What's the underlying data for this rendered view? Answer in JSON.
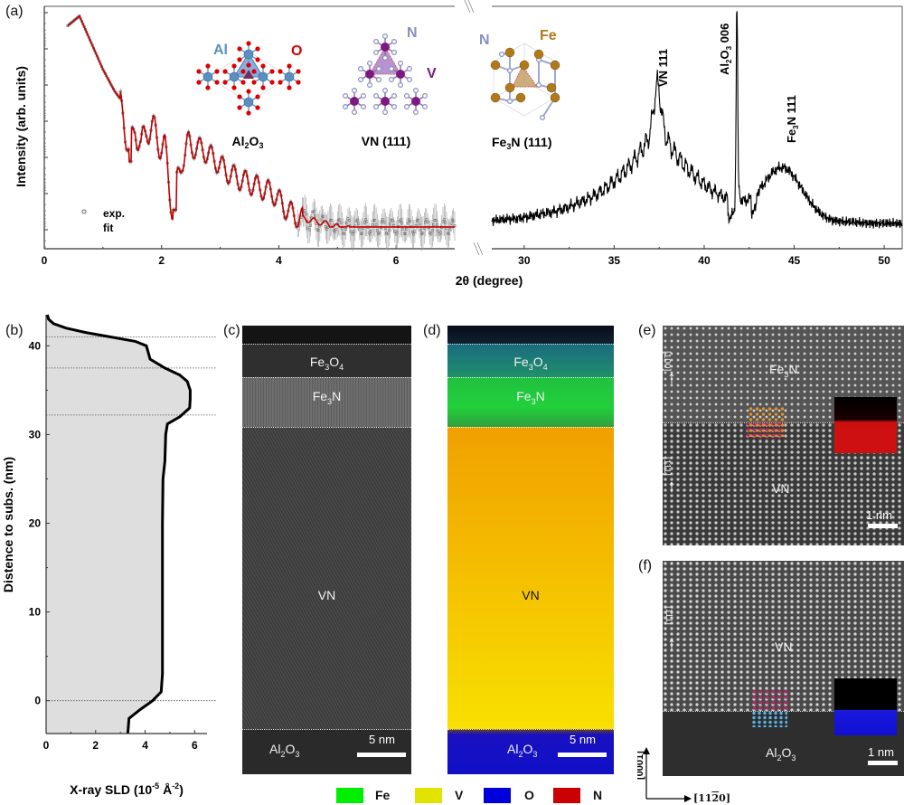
{
  "panels": {
    "a": {
      "label": "(a)"
    },
    "b": {
      "label": "(b)"
    },
    "c": {
      "label": "(c)"
    },
    "d": {
      "label": "(d)"
    },
    "e": {
      "label": "(e)"
    },
    "f": {
      "label": "(f)"
    }
  },
  "chart_data": [
    {
      "id": "xrr",
      "type": "scatter",
      "title": "",
      "xlabel": "2θ (degree)",
      "ylabel": "Intensity (arb. units)",
      "xlim": [
        0,
        7
      ],
      "xticks": [
        "0",
        "2",
        "4",
        "6"
      ],
      "yscale": "log",
      "legend": {
        "placement": "bottom-left",
        "entries": [
          "exp.",
          "fit"
        ]
      },
      "series": [
        {
          "name": "exp.",
          "marker": "open-circle",
          "color": "#555555",
          "x": [
            0.4,
            0.6,
            0.8,
            1.0,
            1.2,
            1.35,
            1.45,
            1.55,
            1.65,
            1.75,
            1.9,
            2.05,
            2.2,
            2.35,
            2.5,
            2.7,
            2.9,
            3.1,
            3.3,
            3.5,
            3.7,
            3.9,
            4.1,
            4.3,
            4.5,
            4.7,
            5.0,
            5.5,
            6.0,
            6.5,
            7.0
          ],
          "y": [
            0.92,
            0.96,
            0.85,
            0.74,
            0.65,
            0.6,
            0.42,
            0.55,
            0.44,
            0.54,
            0.5,
            0.45,
            0.22,
            0.42,
            0.45,
            0.44,
            0.4,
            0.35,
            0.32,
            0.3,
            0.28,
            0.26,
            0.2,
            0.16,
            0.15,
            0.14,
            0.12,
            0.1,
            0.095,
            0.095,
            0.095
          ]
        },
        {
          "name": "fit",
          "marker": "line",
          "color": "#c00000",
          "x": [
            0.4,
            0.6,
            0.8,
            1.0,
            1.2,
            1.35,
            1.45,
            1.55,
            1.65,
            1.75,
            1.9,
            2.05,
            2.2,
            2.35,
            2.5,
            2.7,
            2.9,
            3.1,
            3.3,
            3.5,
            3.7,
            3.9,
            4.1,
            4.3,
            4.5,
            4.7,
            5.0,
            5.5,
            6.0,
            6.5,
            7.0
          ],
          "y": [
            0.92,
            0.96,
            0.85,
            0.74,
            0.65,
            0.6,
            0.4,
            0.55,
            0.43,
            0.54,
            0.5,
            0.44,
            0.18,
            0.42,
            0.45,
            0.44,
            0.4,
            0.35,
            0.32,
            0.3,
            0.28,
            0.26,
            0.2,
            0.16,
            0.15,
            0.14,
            0.12,
            0.1,
            0.095,
            0.095,
            0.095
          ]
        }
      ],
      "annotations": [
        {
          "text": "Al2O3",
          "structure_labels": [
            "Al",
            "O"
          ]
        },
        {
          "text": "VN (111)",
          "structure_labels": [
            "N",
            "V"
          ]
        },
        {
          "text": "Fe3N (111)",
          "structure_labels": [
            "N",
            "Fe"
          ]
        }
      ]
    },
    {
      "id": "xrd",
      "type": "line",
      "xlabel": "2θ (degree)",
      "xlim": [
        28.2,
        51
      ],
      "xticks": [
        "30",
        "35",
        "40",
        "45",
        "50"
      ],
      "yscale": "log",
      "series": [
        {
          "name": "XRD",
          "color": "#000000",
          "peaks": [
            {
              "label": "VN 111",
              "x": 37.4,
              "relative_height": 0.62
            },
            {
              "label": "Al2O3 006",
              "x": 41.8,
              "relative_height": 0.97
            },
            {
              "label": "Fe3N 111",
              "x": 44.4,
              "relative_height": 0.33
            }
          ],
          "background_level": 0.1
        }
      ]
    },
    {
      "id": "sld",
      "type": "line",
      "xlabel": "X-ray SLD (10^-5 Å^-2)",
      "ylabel": "Distence to subs. (nm)",
      "xlim": [
        0,
        6.5
      ],
      "ylim": [
        -3.7,
        43.5
      ],
      "xticks": [
        "0",
        "2",
        "4",
        "6"
      ],
      "yticks": [
        "0",
        "10",
        "20",
        "30",
        "40"
      ],
      "fill": "#dedede",
      "reference_lines_nm": [
        0,
        32.2,
        37.5,
        41.0
      ],
      "series": [
        {
          "name": "SLD profile",
          "color": "#000000",
          "y": [
            -3.7,
            -2,
            -1,
            0,
            1,
            3,
            10,
            20,
            25,
            27,
            30,
            31.2,
            32,
            33,
            34,
            35,
            36,
            36.7,
            37.5,
            38.5,
            39.5,
            40,
            40.5,
            41,
            41.5,
            42,
            42.5,
            43,
            43.5
          ],
          "x": [
            3.3,
            3.35,
            3.8,
            4.3,
            4.65,
            4.7,
            4.7,
            4.7,
            4.72,
            4.8,
            4.83,
            4.9,
            5.4,
            5.8,
            5.82,
            5.82,
            5.7,
            5.4,
            4.8,
            4.2,
            4.1,
            4.05,
            3.6,
            2.6,
            1.6,
            0.8,
            0.3,
            0.1,
            0.05
          ]
        }
      ]
    }
  ],
  "stem_c": {
    "layers": [
      {
        "name": "Fe3O4"
      },
      {
        "name": "Fe3N"
      },
      {
        "name": "VN"
      },
      {
        "name": "Al2O3"
      }
    ],
    "scalebar": "5 nm"
  },
  "stem_d": {
    "layers": [
      {
        "name": "Fe3O4"
      },
      {
        "name": "Fe3N"
      },
      {
        "name": "VN"
      },
      {
        "name": "Al2O3"
      }
    ],
    "scalebar": "5 nm"
  },
  "stem_e": {
    "top_layer": "Fe3N",
    "bottom_layer": "VN",
    "dir_top": "[100]",
    "dir_bottom": "[111]",
    "scalebar": "1 nm"
  },
  "stem_f": {
    "top_layer": "VN",
    "bottom_layer": "Al2O3",
    "dir_top": "[111]",
    "scalebar": "1 nm",
    "axis_vertical": "[0001]",
    "axis_horizontal": "[11̄ 2̄ 0]"
  },
  "legend": {
    "items": [
      {
        "label": "Fe",
        "color": "#00ee00"
      },
      {
        "label": "V",
        "color": "#e3e300"
      },
      {
        "label": "O",
        "color": "#0000dd"
      },
      {
        "label": "N",
        "color": "#cc0000"
      }
    ]
  },
  "colors": {
    "Al": "#5b8fbf",
    "O": "#dd0000",
    "N": "#8890c0",
    "V": "#7a1a80",
    "Fe": "#b07a1a",
    "fit": "#c00000"
  }
}
